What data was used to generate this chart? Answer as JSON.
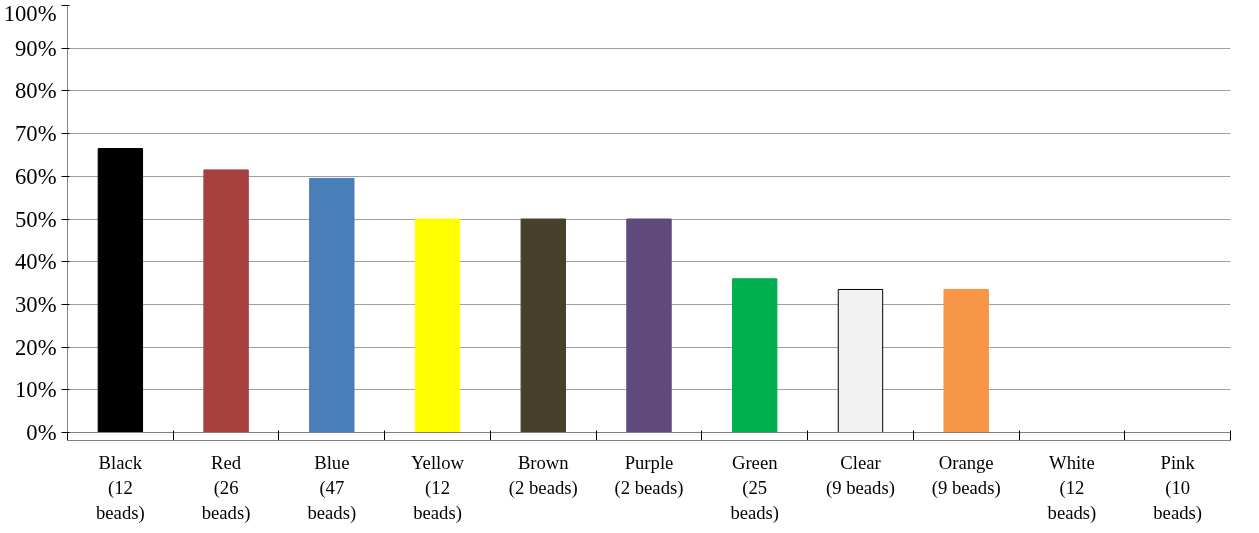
{
  "chart_data": {
    "type": "bar",
    "categories": [
      "Black\n(12\nbeads)",
      "Red\n(26\nbeads)",
      "Blue\n(47\nbeads)",
      "Yellow\n(12\nbeads)",
      "Brown\n(2 beads)",
      "Purple\n(2 beads)",
      "Green\n(25\nbeads)",
      "Clear\n(9 beads)",
      "Orange\n(9 beads)",
      "White\n(12\nbeads)",
      "Pink\n(10\nbeads)"
    ],
    "values": [
      66.5,
      61.5,
      59.5,
      50,
      50,
      50,
      36,
      33.5,
      33.5,
      0,
      0
    ],
    "colors": [
      "#000000",
      "#a5403e",
      "#4a7ebb",
      "#ffff00",
      "#48402a",
      "#5f4a7b",
      "#00b050",
      "#f2f2f2",
      "#f79646",
      "#ffffff",
      "#ff99cc"
    ],
    "ylim": [
      0,
      100
    ],
    "yticks": [
      {
        "value": 0,
        "label": "0%"
      },
      {
        "value": 10,
        "label": "10%"
      },
      {
        "value": 20,
        "label": "20%"
      },
      {
        "value": 30,
        "label": "30%"
      },
      {
        "value": 40,
        "label": "40%"
      },
      {
        "value": 50,
        "label": "50%"
      },
      {
        "value": 60,
        "label": "60%"
      },
      {
        "value": 70,
        "label": "70%"
      },
      {
        "value": 80,
        "label": "80%"
      },
      {
        "value": 90,
        "label": "90%"
      },
      {
        "value": 100,
        "label": "100%"
      }
    ],
    "grid": "y"
  }
}
